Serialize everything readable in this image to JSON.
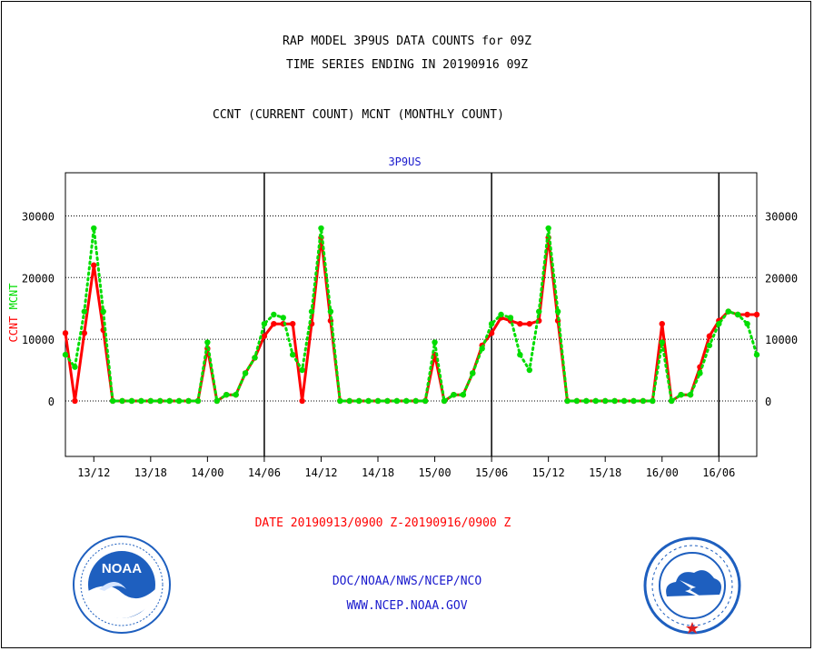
{
  "header": {
    "title_line1": "RAP MODEL 3P9US DATA COUNTS for 09Z",
    "title_line2": "TIME SERIES ENDING IN 20190916 09Z",
    "subtitle": "CCNT (CURRENT COUNT) MCNT (MONTHLY COUNT)"
  },
  "footer": {
    "org": "DOC/NOAA/NWS/NCEP/NCO",
    "url": "WWW.NCEP.NOAA.GOV"
  },
  "logos": {
    "left": "noaa-logo",
    "right": "nws-logo"
  },
  "colors": {
    "ccnt": "#ff0000",
    "mcnt": "#00dd00",
    "text_blue": "#1a1acd",
    "logo_blue": "#1e5fbf"
  },
  "chart_data": {
    "type": "line",
    "title": "3P9US",
    "xlabel": "DATE 20190913/0900 Z-20190916/0900 Z",
    "ylabel_parts": [
      "CCNT",
      "MCNT"
    ],
    "ylim": [
      -9000,
      37000
    ],
    "yticks": [
      0,
      10000,
      20000,
      30000
    ],
    "ytick_labels": [
      "0",
      "10000",
      "20000",
      "30000"
    ],
    "xlim": [
      9,
      82
    ],
    "xticks": [
      12,
      18,
      24,
      30,
      36,
      42,
      48,
      54,
      60,
      66,
      72,
      78
    ],
    "xtick_labels": [
      "13/12",
      "13/18",
      "14/00",
      "14/06",
      "14/12",
      "14/18",
      "15/00",
      "15/06",
      "15/12",
      "15/18",
      "16/00",
      "16/06"
    ],
    "day_dividers": [
      30,
      54,
      78
    ],
    "grid": true,
    "series": [
      {
        "name": "CCNT",
        "color": "#ff0000",
        "style": "solid",
        "x": [
          9,
          10,
          11,
          12,
          13,
          14,
          15,
          16,
          17,
          18,
          19,
          20,
          21,
          22,
          23,
          24,
          25,
          26,
          27,
          28,
          29,
          30,
          31,
          32,
          33,
          34,
          35,
          36,
          37,
          38,
          39,
          40,
          41,
          42,
          43,
          44,
          45,
          46,
          47,
          48,
          49,
          50,
          51,
          52,
          53,
          54,
          55,
          56,
          57,
          58,
          59,
          60,
          61,
          62,
          63,
          64,
          65,
          66,
          67,
          68,
          69,
          70,
          71,
          72,
          73,
          74,
          75,
          76,
          77,
          78,
          79,
          80,
          81,
          82
        ],
        "values": [
          11000,
          0,
          11000,
          22000,
          11500,
          0,
          0,
          0,
          0,
          0,
          0,
          0,
          0,
          0,
          0,
          8500,
          0,
          1000,
          1000,
          4500,
          7000,
          10500,
          12500,
          12500,
          12500,
          0,
          12500,
          26500,
          13000,
          0,
          0,
          0,
          0,
          0,
          0,
          0,
          0,
          0,
          0,
          7500,
          0,
          1000,
          1000,
          4500,
          9000,
          11000,
          13500,
          13000,
          12500,
          12500,
          13000,
          26500,
          13000,
          0,
          0,
          0,
          0,
          0,
          0,
          0,
          0,
          0,
          0,
          12500,
          0,
          1000,
          1000,
          5500,
          10500,
          13000,
          14500,
          14000,
          14000,
          14000
        ]
      },
      {
        "name": "MCNT",
        "color": "#00dd00",
        "style": "dotted",
        "x": [
          9,
          10,
          11,
          12,
          13,
          14,
          15,
          16,
          17,
          18,
          19,
          20,
          21,
          22,
          23,
          24,
          25,
          26,
          27,
          28,
          29,
          30,
          31,
          32,
          33,
          34,
          35,
          36,
          37,
          38,
          39,
          40,
          41,
          42,
          43,
          44,
          45,
          46,
          47,
          48,
          49,
          50,
          51,
          52,
          53,
          54,
          55,
          56,
          57,
          58,
          59,
          60,
          61,
          62,
          63,
          64,
          65,
          66,
          67,
          68,
          69,
          70,
          71,
          72,
          73,
          74,
          75,
          76,
          77,
          78,
          79,
          80,
          81,
          82
        ],
        "values": [
          7500,
          5500,
          14500,
          28000,
          14500,
          0,
          0,
          0,
          0,
          0,
          0,
          0,
          0,
          0,
          0,
          9500,
          0,
          1000,
          1000,
          4500,
          7000,
          12500,
          14000,
          13500,
          7500,
          5000,
          14500,
          28000,
          14500,
          0,
          0,
          0,
          0,
          0,
          0,
          0,
          0,
          0,
          0,
          9500,
          0,
          1000,
          1000,
          4500,
          8500,
          12500,
          14000,
          13500,
          7500,
          5000,
          14500,
          28000,
          14500,
          0,
          0,
          0,
          0,
          0,
          0,
          0,
          0,
          0,
          0,
          9500,
          0,
          1000,
          1000,
          4500,
          9000,
          12500,
          14500,
          14000,
          12500,
          7500
        ]
      }
    ]
  }
}
